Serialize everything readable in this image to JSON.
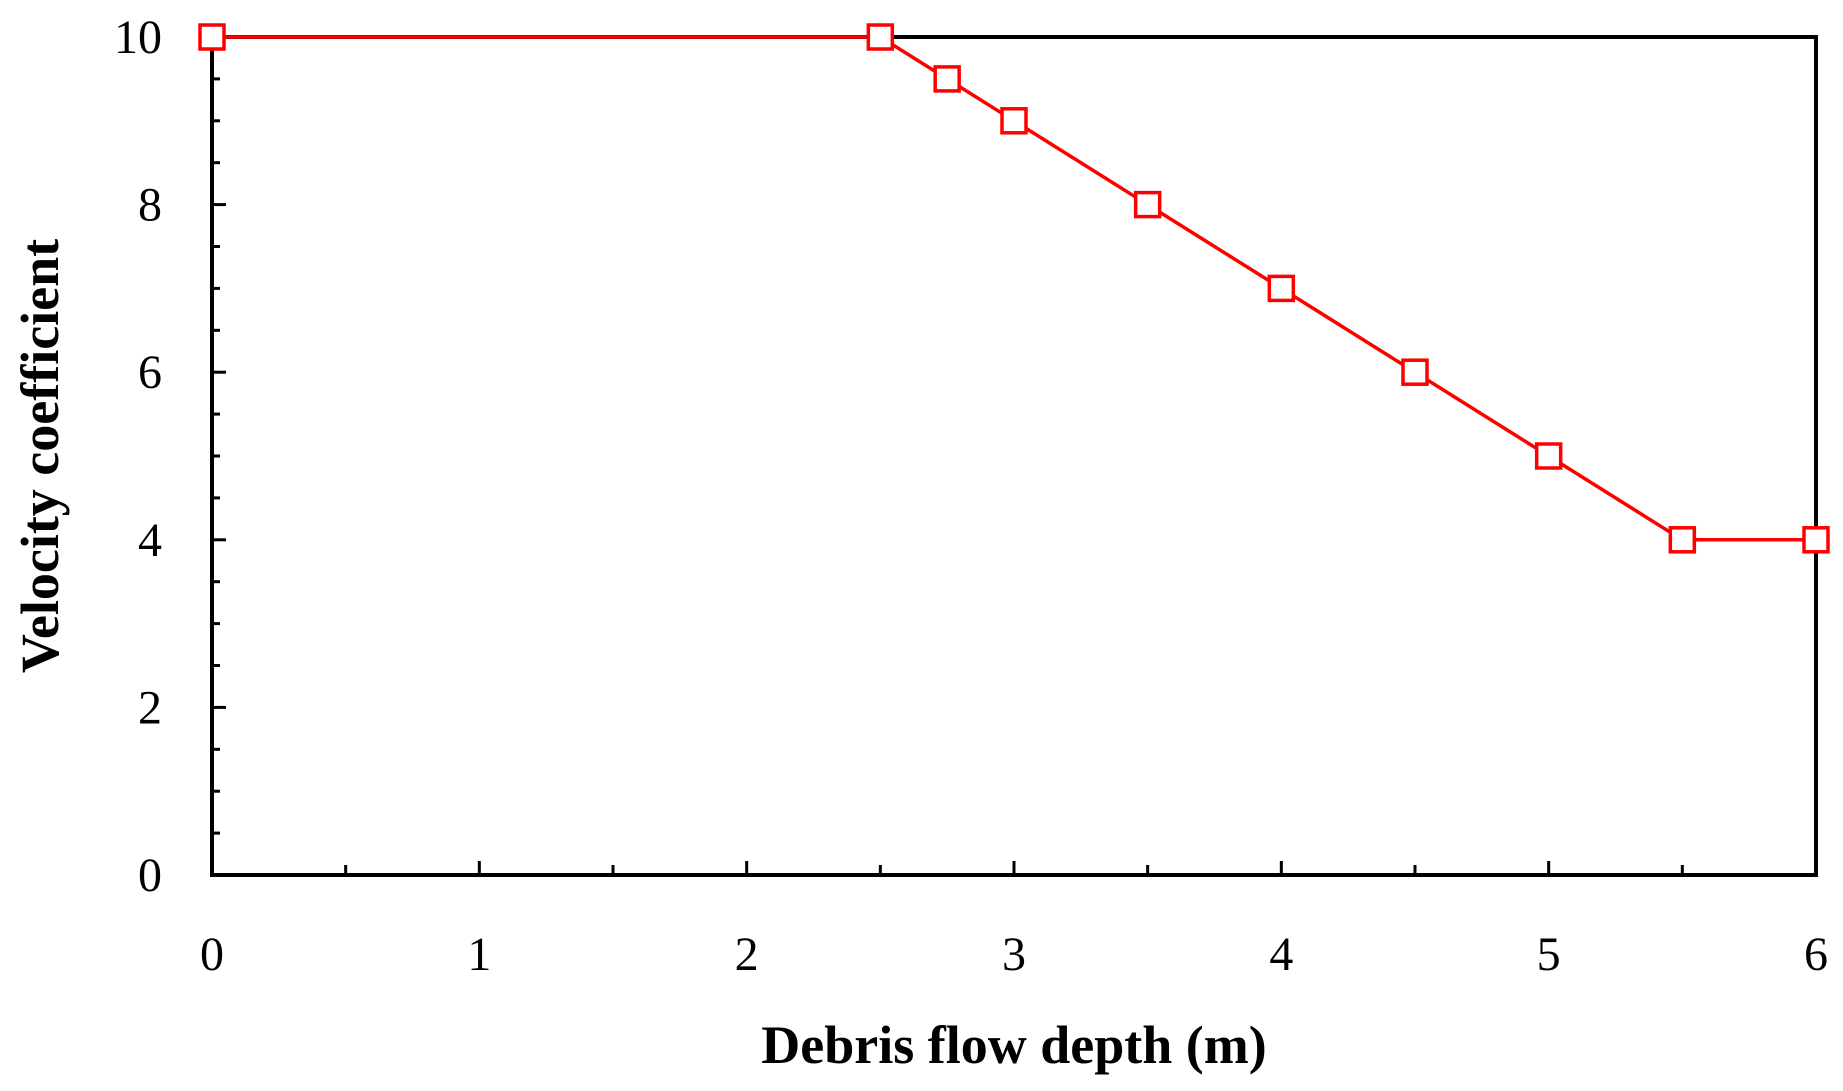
{
  "chart_data": {
    "type": "line",
    "title": "",
    "xlabel": "Debris flow depth (m)",
    "ylabel": "Velocity coefficient",
    "xlim": [
      0,
      6
    ],
    "ylim": [
      0,
      10
    ],
    "x_ticks": [
      0,
      1,
      2,
      3,
      4,
      5,
      6
    ],
    "x_tick_labels": [
      "0",
      "1",
      "2",
      "3",
      "4",
      "5",
      "6"
    ],
    "x_minor_step": 0.5,
    "y_ticks": [
      0,
      2,
      4,
      6,
      8,
      10
    ],
    "y_tick_labels": [
      "0",
      "2",
      "4",
      "6",
      "8",
      "10"
    ],
    "y_minor_step": 0.5,
    "grid": false,
    "legend": "none",
    "series": [
      {
        "color": "#ff0000",
        "marker": "open-square",
        "x": [
          0,
          2.5,
          2.75,
          3,
          3.5,
          4,
          4.5,
          5,
          5.5,
          6
        ],
        "y": [
          10,
          10,
          9.5,
          9,
          8,
          7,
          6,
          5,
          4,
          4
        ]
      }
    ]
  }
}
